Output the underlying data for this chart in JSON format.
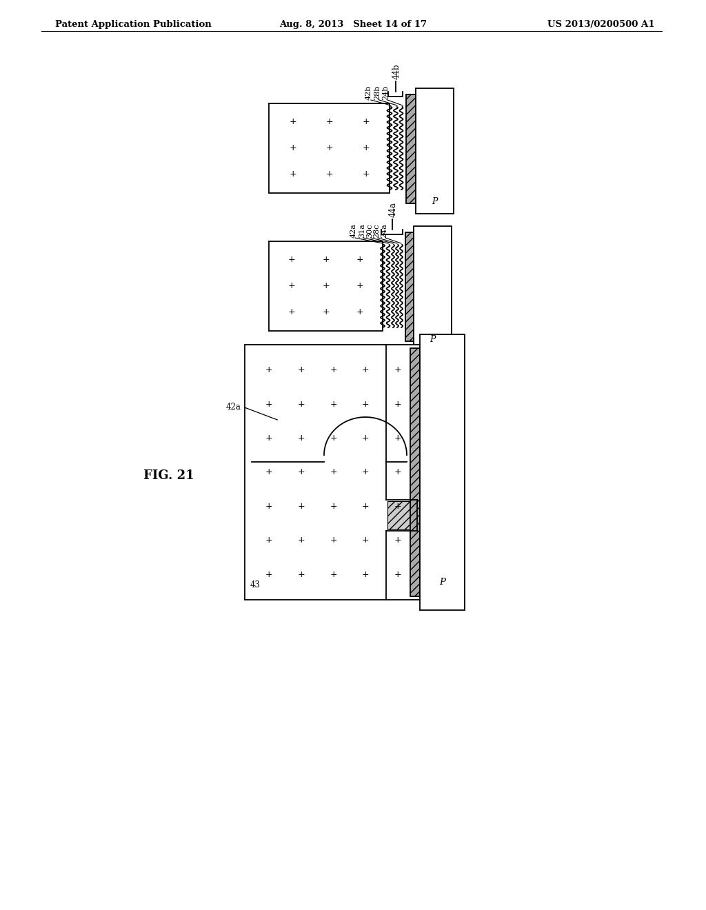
{
  "bg_color": "#ffffff",
  "header_left": "Patent Application Publication",
  "header_mid": "Aug. 8, 2013   Sheet 14 of 17",
  "header_right": "US 2013/0200500 A1",
  "fig_label": "FIG. 21"
}
